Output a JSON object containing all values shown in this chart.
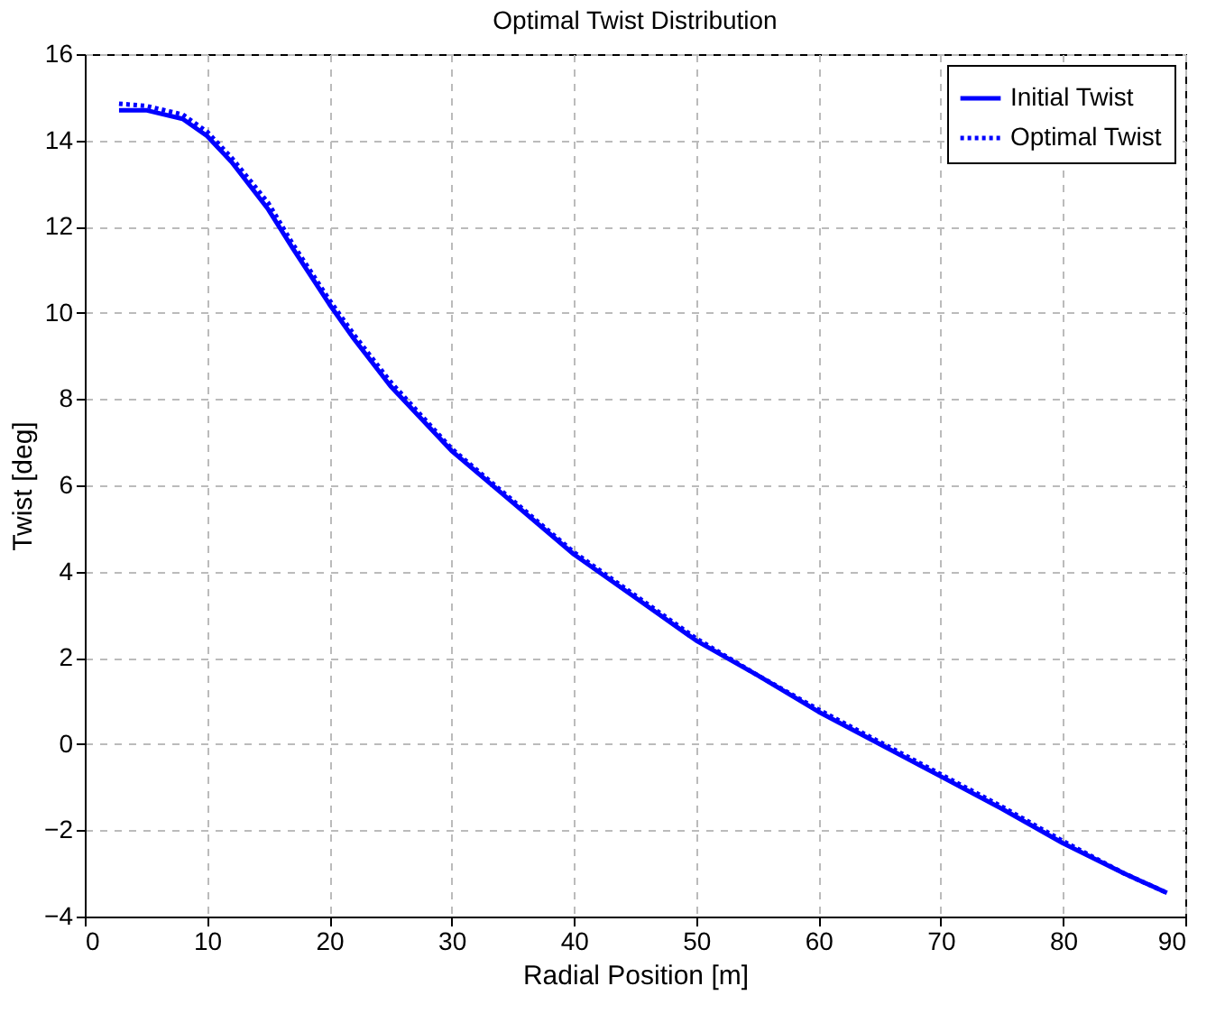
{
  "chart_data": {
    "type": "line",
    "title": "Optimal Twist Distribution",
    "xlabel": "Radial Position [m]",
    "ylabel": "Twist [deg]",
    "xlim": [
      0,
      90
    ],
    "xticks": [
      0,
      10,
      20,
      30,
      40,
      50,
      60,
      70,
      80,
      90
    ],
    "ylim": [
      -4,
      16
    ],
    "yticks": [
      -4,
      -2,
      0,
      2,
      4,
      6,
      8,
      10,
      12,
      14,
      16
    ],
    "grid": true,
    "legend": "top right",
    "marker": "none",
    "series": [
      {
        "name": "Initial Twist",
        "color": "#0000ff",
        "line_style": "solid",
        "x": [
          2.8,
          5,
          8,
          10,
          12,
          15,
          17,
          20,
          22,
          25,
          30,
          35,
          40,
          45,
          50,
          55,
          60,
          65,
          70,
          75,
          80,
          85,
          88.5
        ],
        "values": [
          14.7,
          14.7,
          14.5,
          14.1,
          13.5,
          12.4,
          11.5,
          10.2,
          9.4,
          8.3,
          6.8,
          5.6,
          4.4,
          3.4,
          2.4,
          1.6,
          0.75,
          0.0,
          -0.75,
          -1.5,
          -2.3,
          -3.0,
          -3.45
        ]
      },
      {
        "name": "Optimal Twist",
        "color": "#0000ff",
        "line_style": "dotted",
        "x": [
          2.8,
          5,
          8,
          10,
          12,
          15,
          17,
          20,
          22,
          25,
          30,
          35,
          40,
          45,
          50,
          55,
          60,
          65,
          70,
          75,
          80,
          85,
          88.5
        ],
        "values": [
          14.85,
          14.8,
          14.6,
          14.2,
          13.6,
          12.55,
          11.6,
          10.3,
          9.5,
          8.4,
          6.85,
          5.65,
          4.45,
          3.45,
          2.45,
          1.6,
          0.8,
          0.05,
          -0.7,
          -1.45,
          -2.25,
          -3.0,
          -3.45
        ]
      }
    ]
  }
}
